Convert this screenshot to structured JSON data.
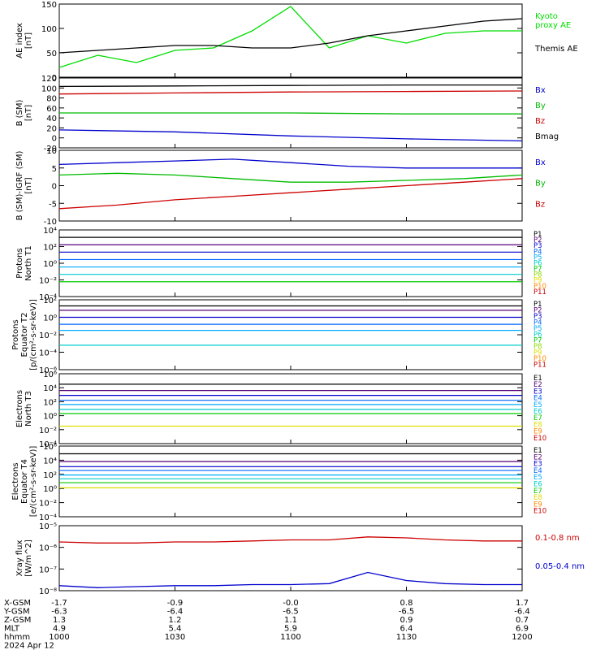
{
  "chart_data": [
    {
      "type": "line",
      "ylabel": "AE index\n[nT]",
      "yticks": [
        "150",
        "100",
        "50",
        "0"
      ],
      "ylim": [
        0,
        150
      ],
      "x": [
        "1000",
        "1010",
        "1020",
        "1030",
        "1040",
        "1050",
        "1100",
        "1110",
        "1120",
        "1130",
        "1140",
        "1150",
        "1200"
      ],
      "series": [
        {
          "name": "Kyoto\nproxy AE",
          "color": "#00dd00",
          "values": [
            20,
            45,
            30,
            55,
            60,
            95,
            145,
            60,
            85,
            70,
            90,
            95,
            95
          ]
        },
        {
          "name": "Themis AE",
          "color": "#000000",
          "values": [
            50,
            55,
            60,
            65,
            65,
            60,
            60,
            70,
            85,
            95,
            105,
            115,
            120
          ]
        }
      ]
    },
    {
      "type": "line",
      "ylabel": "B (SM)\n[nT]",
      "yticks": [
        "120",
        "100",
        "80",
        "60",
        "40",
        "20",
        "0",
        "-20"
      ],
      "ylim": [
        -20,
        120
      ],
      "x": [
        "1000",
        "1030",
        "1100",
        "1130",
        "1200"
      ],
      "series": [
        {
          "name": "Bx",
          "color": "#0000cc",
          "values": [
            16,
            12,
            4,
            -2,
            -6
          ]
        },
        {
          "name": "By",
          "color": "#00bb00",
          "values": [
            50,
            50,
            50,
            48,
            48
          ]
        },
        {
          "name": "Bz",
          "color": "#cc0000",
          "values": [
            88,
            90,
            92,
            93,
            94
          ]
        },
        {
          "name": "Bmag",
          "color": "#000000",
          "values": [
            103,
            104,
            105,
            106,
            106
          ]
        }
      ]
    },
    {
      "type": "line",
      "ylabel": "B (SM)-IGRF (SM)\n[nT]",
      "yticks": [
        "10",
        "5",
        "0",
        "-5",
        "-10"
      ],
      "ylim": [
        -10,
        10
      ],
      "x": [
        "1000",
        "1015",
        "1030",
        "1045",
        "1100",
        "1115",
        "1130",
        "1145",
        "1200"
      ],
      "series": [
        {
          "name": "Bx",
          "color": "#0000cc",
          "values": [
            6,
            6.5,
            7,
            7.5,
            6.5,
            5.5,
            5,
            5,
            5
          ]
        },
        {
          "name": "By",
          "color": "#00bb00",
          "values": [
            3,
            3.5,
            3,
            2,
            1,
            1,
            1.5,
            2,
            3
          ]
        },
        {
          "name": "Bz",
          "color": "#cc0000",
          "values": [
            -6.5,
            -5.5,
            -4,
            -3,
            -2,
            -1,
            0,
            1,
            2
          ]
        }
      ]
    },
    {
      "type": "line",
      "log": true,
      "ylabel": "Protons\nNorth T1",
      "yticks": [
        "10⁴",
        "10²",
        "10⁰",
        "10⁻²",
        "10⁻⁴"
      ],
      "ylim": [
        -5,
        4
      ],
      "x": [
        "1000",
        "1200"
      ],
      "series_names": [
        "P1",
        "P2",
        "P3",
        "P4",
        "P5",
        "P6",
        "P7",
        "P8",
        "P9",
        "P10",
        "P11"
      ],
      "series_colors": [
        "#000000",
        "#550077",
        "#0000cc",
        "#0066ff",
        "#00aaff",
        "#00cccc",
        "#00cc00",
        "#88dd00",
        "#dddd00",
        "#ff8800",
        "#cc0000"
      ],
      "levels": [
        3,
        2,
        1,
        0,
        -1,
        -2,
        -3
      ]
    },
    {
      "type": "line",
      "log": true,
      "ylabel": "Protons\nEquator T2\n[p/(cm²-s-sr-keV)]",
      "yticks": [
        "10²",
        "10⁰",
        "10⁻²",
        "10⁻⁴",
        "10⁻⁶"
      ],
      "ylim": [
        -6,
        2
      ],
      "x": [
        "1000",
        "1200"
      ],
      "series_names": [
        "P1",
        "P2",
        "P3",
        "P4",
        "P5",
        "P6",
        "P7",
        "P8",
        "P9",
        "P10",
        "P11"
      ],
      "series_colors": [
        "#000000",
        "#550077",
        "#0000cc",
        "#0066ff",
        "#00aaff",
        "#00cccc",
        "#00cc00",
        "#88dd00",
        "#dddd00",
        "#ff8800",
        "#cc0000"
      ],
      "levels": [
        1.3,
        0.8,
        0,
        -0.8,
        -1.5,
        -3.2
      ]
    },
    {
      "type": "line",
      "log": true,
      "ylabel": "Electrons\nNorth T3",
      "yticks": [
        "10⁶",
        "10⁴",
        "10²",
        "10⁰",
        "10⁻²",
        "10⁻⁴"
      ],
      "ylim": [
        -4,
        6
      ],
      "x": [
        "1000",
        "1200"
      ],
      "series_names": [
        "E1",
        "E2",
        "E3",
        "E4",
        "E5",
        "E6",
        "E7",
        "E8",
        "E9",
        "E10"
      ],
      "series_colors": [
        "#000000",
        "#550077",
        "#0000cc",
        "#0066ff",
        "#00aaff",
        "#00cccc",
        "#00cc00",
        "#dddd00",
        "#ff8800",
        "#cc0000"
      ],
      "levels": [
        4.5,
        3.6,
        2.9,
        2.2,
        1.6,
        0.9,
        0.3,
        -1.5
      ]
    },
    {
      "type": "line",
      "log": true,
      "ylabel": "Electrons\nEquator T4\n[e/(cm²-s-sr-keV)]",
      "yticks": [
        "10⁶",
        "10⁴",
        "10²",
        "10⁰",
        "10⁻²",
        "10⁻⁴"
      ],
      "ylim": [
        -5,
        6
      ],
      "x": [
        "1000",
        "1200"
      ],
      "series_names": [
        "E1",
        "E2",
        "E3",
        "E4",
        "E5",
        "E6",
        "E7",
        "E8",
        "E9",
        "E10"
      ],
      "series_colors": [
        "#000000",
        "#550077",
        "#0000cc",
        "#0066ff",
        "#00aaff",
        "#00cccc",
        "#00cc00",
        "#dddd00",
        "#ff8800",
        "#cc0000"
      ],
      "levels": [
        4.8,
        3.6,
        2.8,
        2.2,
        1.5,
        0.9,
        0.3,
        -0.5
      ]
    },
    {
      "type": "line",
      "log": true,
      "ylabel": "Xray flux\n[W/m^2]",
      "yticks": [
        "10⁻⁵",
        "10⁻⁶",
        "10⁻⁷",
        "10⁻⁸"
      ],
      "ylim": [
        -8.2,
        -5
      ],
      "x": [
        "1000",
        "1010",
        "1020",
        "1030",
        "1040",
        "1050",
        "1100",
        "1110",
        "1120",
        "1130",
        "1140",
        "1150",
        "1200"
      ],
      "series": [
        {
          "name": "0.1-0.8 nm",
          "color": "#cc0000",
          "values": [
            -5.8,
            -5.85,
            -5.85,
            -5.8,
            -5.8,
            -5.75,
            -5.7,
            -5.7,
            -5.55,
            -5.6,
            -5.7,
            -5.75,
            -5.75
          ]
        },
        {
          "name": "0.05-0.4 nm",
          "color": "#0000cc",
          "values": [
            -7.95,
            -8.05,
            -8.0,
            -7.95,
            -7.95,
            -7.9,
            -7.9,
            -7.85,
            -7.3,
            -7.7,
            -7.85,
            -7.9,
            -7.9
          ]
        }
      ]
    }
  ],
  "axis_labels": {
    "rows": [
      {
        "name": "X-GSM",
        "values": [
          "-1.7",
          "-0.9",
          "-0.0",
          "0.8",
          "1.7"
        ]
      },
      {
        "name": "Y-GSM",
        "values": [
          "-6.3",
          "-6.4",
          "-6.5",
          "-6.5",
          "-6.4"
        ]
      },
      {
        "name": "Z-GSM",
        "values": [
          "1.3",
          "1.2",
          "1.1",
          "0.9",
          "0.7"
        ]
      },
      {
        "name": "MLT",
        "values": [
          "4.9",
          "5.4",
          "5.9",
          "6.4",
          "6.9"
        ]
      },
      {
        "name": "hhmm",
        "values": [
          "1000",
          "1030",
          "1100",
          "1130",
          "1200"
        ]
      }
    ],
    "date": "2024 Apr 12"
  }
}
